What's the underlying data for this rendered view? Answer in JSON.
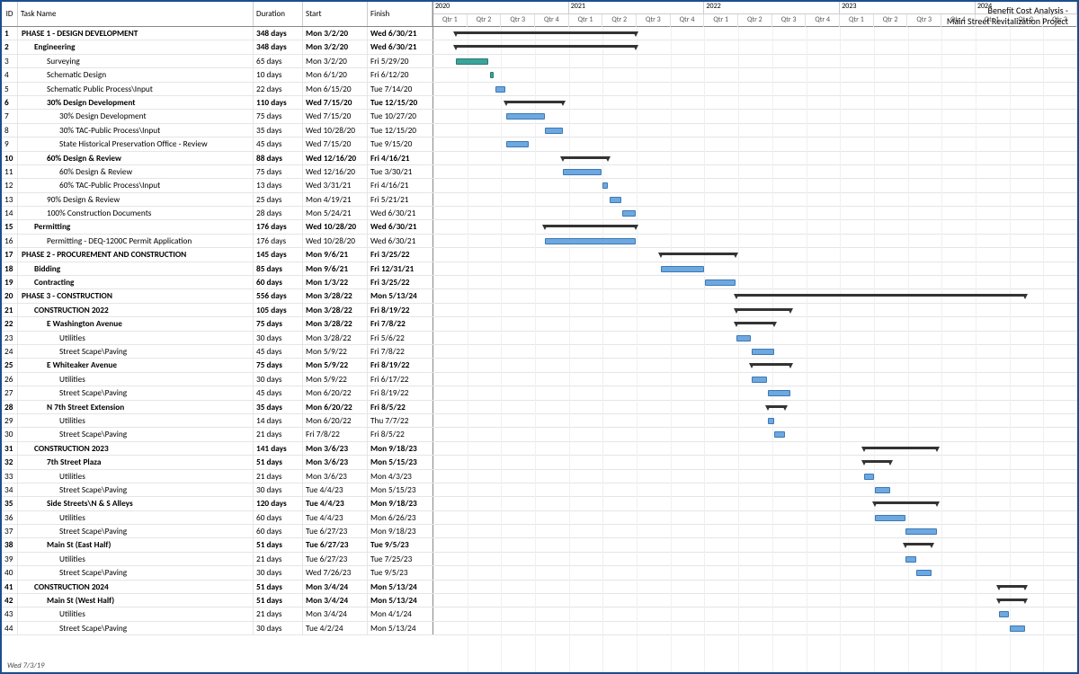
{
  "title_line1": "Benefit Cost Analysis -",
  "title_line2": "Main Street Revitalization Project",
  "footer": "Wed 7/3/19",
  "columns": {
    "id": "ID",
    "name": "Task Name",
    "dur": "Duration",
    "start": "Start",
    "finish": "Finish"
  },
  "timeline": {
    "start": "2020-01-01",
    "end": "2024-10-01",
    "years": [
      {
        "label": "2020",
        "qtrs": 4
      },
      {
        "label": "2021",
        "qtrs": 4
      },
      {
        "label": "2022",
        "qtrs": 4
      },
      {
        "label": "2023",
        "qtrs": 4
      },
      {
        "label": "2024",
        "qtrs": 3
      }
    ],
    "qtr_labels": [
      "Qtr 1",
      "Qtr 2",
      "Qtr 3",
      "Qtr 4"
    ]
  },
  "colors": {
    "border": "#1a4f8f",
    "task": "#6ea8e0",
    "task_border": "#3c78b4",
    "progress": "#3aa49b",
    "summary": "#333333",
    "grid": "#f0f0f0"
  },
  "tasks": [
    {
      "id": 1,
      "name": "PHASE 1 - DESIGN DEVELOPMENT",
      "dur": "348 days",
      "start": "Mon 3/2/20",
      "fin": "Wed 6/30/21",
      "indent": 0,
      "bold": true,
      "type": "summary",
      "s": "2020-03-02",
      "e": "2021-06-30"
    },
    {
      "id": 2,
      "name": "Engineering",
      "dur": "348 days",
      "start": "Mon 3/2/20",
      "fin": "Wed 6/30/21",
      "indent": 1,
      "bold": true,
      "type": "summary",
      "s": "2020-03-02",
      "e": "2021-06-30"
    },
    {
      "id": 3,
      "name": "Surveying",
      "dur": "65 days",
      "start": "Mon 3/2/20",
      "fin": "Fri 5/29/20",
      "indent": 2,
      "type": "prog",
      "s": "2020-03-02",
      "e": "2020-05-29"
    },
    {
      "id": 4,
      "name": "Schematic Design",
      "dur": "10 days",
      "start": "Mon 6/1/20",
      "fin": "Fri 6/12/20",
      "indent": 2,
      "type": "prog",
      "s": "2020-06-01",
      "e": "2020-06-12"
    },
    {
      "id": 5,
      "name": "Schematic Public Process\\Input",
      "dur": "22 days",
      "start": "Mon 6/15/20",
      "fin": "Tue 7/14/20",
      "indent": 2,
      "type": "task",
      "s": "2020-06-15",
      "e": "2020-07-14"
    },
    {
      "id": 6,
      "name": "30% Design Development",
      "dur": "110 days",
      "start": "Wed 7/15/20",
      "fin": "Tue 12/15/20",
      "indent": 2,
      "bold": true,
      "type": "summary",
      "s": "2020-07-15",
      "e": "2020-12-15"
    },
    {
      "id": 7,
      "name": "30% Design Development",
      "dur": "75 days",
      "start": "Wed 7/15/20",
      "fin": "Tue 10/27/20",
      "indent": 3,
      "type": "task",
      "s": "2020-07-15",
      "e": "2020-10-27"
    },
    {
      "id": 8,
      "name": "30% TAC-Public Process\\Input",
      "dur": "35 days",
      "start": "Wed 10/28/20",
      "fin": "Tue 12/15/20",
      "indent": 3,
      "type": "task",
      "s": "2020-10-28",
      "e": "2020-12-15"
    },
    {
      "id": 9,
      "name": "State Historical Preservation Office - Review",
      "dur": "45 days",
      "start": "Wed 7/15/20",
      "fin": "Tue 9/15/20",
      "indent": 3,
      "type": "task",
      "s": "2020-07-15",
      "e": "2020-09-15"
    },
    {
      "id": 10,
      "name": "60% Design & Review",
      "dur": "88 days",
      "start": "Wed 12/16/20",
      "fin": "Fri 4/16/21",
      "indent": 2,
      "bold": true,
      "type": "summary",
      "s": "2020-12-16",
      "e": "2021-04-16"
    },
    {
      "id": 11,
      "name": "60% Design & Review",
      "dur": "75 days",
      "start": "Wed 12/16/20",
      "fin": "Tue 3/30/21",
      "indent": 3,
      "type": "task",
      "s": "2020-12-16",
      "e": "2021-03-30"
    },
    {
      "id": 12,
      "name": "60% TAC-Public Process\\Input",
      "dur": "13 days",
      "start": "Wed 3/31/21",
      "fin": "Fri 4/16/21",
      "indent": 3,
      "type": "task",
      "s": "2021-03-31",
      "e": "2021-04-16"
    },
    {
      "id": 13,
      "name": "90% Design & Review",
      "dur": "25 days",
      "start": "Mon 4/19/21",
      "fin": "Fri 5/21/21",
      "indent": 2,
      "type": "task",
      "s": "2021-04-19",
      "e": "2021-05-21"
    },
    {
      "id": 14,
      "name": "100% Construction Documents",
      "dur": "28 days",
      "start": "Mon 5/24/21",
      "fin": "Wed 6/30/21",
      "indent": 2,
      "type": "task",
      "s": "2021-05-24",
      "e": "2021-06-30"
    },
    {
      "id": 15,
      "name": "Permitting",
      "dur": "176 days",
      "start": "Wed 10/28/20",
      "fin": "Wed 6/30/21",
      "indent": 1,
      "bold": true,
      "type": "summary",
      "s": "2020-10-28",
      "e": "2021-06-30"
    },
    {
      "id": 16,
      "name": "Permitting - DEQ-1200C Permit Application",
      "dur": "176 days",
      "start": "Wed 10/28/20",
      "fin": "Wed 6/30/21",
      "indent": 2,
      "type": "task",
      "s": "2020-10-28",
      "e": "2021-06-30"
    },
    {
      "id": 17,
      "name": "PHASE 2 - PROCUREMENT AND CONSTRUCTION",
      "dur": "145 days",
      "start": "Mon 9/6/21",
      "fin": "Fri 3/25/22",
      "indent": 0,
      "bold": true,
      "type": "summary",
      "s": "2021-09-06",
      "e": "2022-03-25"
    },
    {
      "id": 18,
      "name": "Bidding",
      "dur": "85 days",
      "start": "Mon 9/6/21",
      "fin": "Fri 12/31/21",
      "indent": 1,
      "bold": true,
      "type": "task",
      "s": "2021-09-06",
      "e": "2021-12-31"
    },
    {
      "id": 19,
      "name": "Contracting",
      "dur": "60 days",
      "start": "Mon 1/3/22",
      "fin": "Fri 3/25/22",
      "indent": 1,
      "bold": true,
      "type": "task",
      "s": "2022-01-03",
      "e": "2022-03-25"
    },
    {
      "id": 20,
      "name": "PHASE 3 - CONSTRUCTION",
      "dur": "556 days",
      "start": "Mon 3/28/22",
      "fin": "Mon 5/13/24",
      "indent": 0,
      "bold": true,
      "type": "summary",
      "s": "2022-03-28",
      "e": "2024-05-13"
    },
    {
      "id": 21,
      "name": "CONSTRUCTION 2022",
      "dur": "105 days",
      "start": "Mon 3/28/22",
      "fin": "Fri 8/19/22",
      "indent": 1,
      "bold": true,
      "type": "summary",
      "s": "2022-03-28",
      "e": "2022-08-19"
    },
    {
      "id": 22,
      "name": "E Washington Avenue",
      "dur": "75 days",
      "start": "Mon 3/28/22",
      "fin": "Fri 7/8/22",
      "indent": 2,
      "bold": true,
      "type": "summary",
      "s": "2022-03-28",
      "e": "2022-07-08"
    },
    {
      "id": 23,
      "name": "Utilities",
      "dur": "30 days",
      "start": "Mon 3/28/22",
      "fin": "Fri 5/6/22",
      "indent": 3,
      "type": "task",
      "s": "2022-03-28",
      "e": "2022-05-06"
    },
    {
      "id": 24,
      "name": "Street Scape\\Paving",
      "dur": "45 days",
      "start": "Mon 5/9/22",
      "fin": "Fri 7/8/22",
      "indent": 3,
      "type": "task",
      "s": "2022-05-09",
      "e": "2022-07-08"
    },
    {
      "id": 25,
      "name": "E Whiteaker Avenue",
      "dur": "75 days",
      "start": "Mon 5/9/22",
      "fin": "Fri 8/19/22",
      "indent": 2,
      "bold": true,
      "type": "summary",
      "s": "2022-05-09",
      "e": "2022-08-19"
    },
    {
      "id": 26,
      "name": "Utilities",
      "dur": "30 days",
      "start": "Mon 5/9/22",
      "fin": "Fri 6/17/22",
      "indent": 3,
      "type": "task",
      "s": "2022-05-09",
      "e": "2022-06-17"
    },
    {
      "id": 27,
      "name": "Street Scape\\Paving",
      "dur": "45 days",
      "start": "Mon 6/20/22",
      "fin": "Fri 8/19/22",
      "indent": 3,
      "type": "task",
      "s": "2022-06-20",
      "e": "2022-08-19"
    },
    {
      "id": 28,
      "name": "N 7th Street Extension",
      "dur": "35 days",
      "start": "Mon 6/20/22",
      "fin": "Fri 8/5/22",
      "indent": 2,
      "bold": true,
      "type": "summary",
      "s": "2022-06-20",
      "e": "2022-08-05"
    },
    {
      "id": 29,
      "name": "Utilities",
      "dur": "14 days",
      "start": "Mon 6/20/22",
      "fin": "Thu 7/7/22",
      "indent": 3,
      "type": "task",
      "s": "2022-06-20",
      "e": "2022-07-07"
    },
    {
      "id": 30,
      "name": "Street Scape\\Paving",
      "dur": "21 days",
      "start": "Fri 7/8/22",
      "fin": "Fri 8/5/22",
      "indent": 3,
      "type": "task",
      "s": "2022-07-08",
      "e": "2022-08-05"
    },
    {
      "id": 31,
      "name": "CONSTRUCTION 2023",
      "dur": "141 days",
      "start": "Mon 3/6/23",
      "fin": "Mon 9/18/23",
      "indent": 1,
      "bold": true,
      "type": "summary",
      "s": "2023-03-06",
      "e": "2023-09-18"
    },
    {
      "id": 32,
      "name": "7th Street Plaza",
      "dur": "51 days",
      "start": "Mon 3/6/23",
      "fin": "Mon 5/15/23",
      "indent": 2,
      "bold": true,
      "type": "summary",
      "s": "2023-03-06",
      "e": "2023-05-15"
    },
    {
      "id": 33,
      "name": "Utilities",
      "dur": "21 days",
      "start": "Mon 3/6/23",
      "fin": "Mon 4/3/23",
      "indent": 3,
      "type": "task",
      "s": "2023-03-06",
      "e": "2023-04-03"
    },
    {
      "id": 34,
      "name": "Street Scape\\Paving",
      "dur": "30 days",
      "start": "Tue 4/4/23",
      "fin": "Mon 5/15/23",
      "indent": 3,
      "type": "task",
      "s": "2023-04-04",
      "e": "2023-05-15"
    },
    {
      "id": 35,
      "name": "Side Streets\\N & S Alleys",
      "dur": "120 days",
      "start": "Tue 4/4/23",
      "fin": "Mon 9/18/23",
      "indent": 2,
      "bold": true,
      "type": "summary",
      "s": "2023-04-04",
      "e": "2023-09-18"
    },
    {
      "id": 36,
      "name": "Utilities",
      "dur": "60 days",
      "start": "Tue 4/4/23",
      "fin": "Mon 6/26/23",
      "indent": 3,
      "type": "task",
      "s": "2023-04-04",
      "e": "2023-06-26"
    },
    {
      "id": 37,
      "name": "Street Scape\\Paving",
      "dur": "60 days",
      "start": "Tue 6/27/23",
      "fin": "Mon 9/18/23",
      "indent": 3,
      "type": "task",
      "s": "2023-06-27",
      "e": "2023-09-18"
    },
    {
      "id": 38,
      "name": "Main St (East Half)",
      "dur": "51 days",
      "start": "Tue 6/27/23",
      "fin": "Tue 9/5/23",
      "indent": 2,
      "bold": true,
      "type": "summary",
      "s": "2023-06-27",
      "e": "2023-09-05"
    },
    {
      "id": 39,
      "name": "Utilities",
      "dur": "21 days",
      "start": "Tue 6/27/23",
      "fin": "Tue 7/25/23",
      "indent": 3,
      "type": "task",
      "s": "2023-06-27",
      "e": "2023-07-25"
    },
    {
      "id": 40,
      "name": "Street Scape\\Paving",
      "dur": "30 days",
      "start": "Wed 7/26/23",
      "fin": "Tue 9/5/23",
      "indent": 3,
      "type": "task",
      "s": "2023-07-26",
      "e": "2023-09-05"
    },
    {
      "id": 41,
      "name": "CONSTRUCTION 2024",
      "dur": "51 days",
      "start": "Mon 3/4/24",
      "fin": "Mon 5/13/24",
      "indent": 1,
      "bold": true,
      "type": "summary",
      "s": "2024-03-04",
      "e": "2024-05-13"
    },
    {
      "id": 42,
      "name": "Main St (West Half)",
      "dur": "51 days",
      "start": "Mon 3/4/24",
      "fin": "Mon 5/13/24",
      "indent": 2,
      "bold": true,
      "type": "summary",
      "s": "2024-03-04",
      "e": "2024-05-13"
    },
    {
      "id": 43,
      "name": "Utilities",
      "dur": "21 days",
      "start": "Mon 3/4/24",
      "fin": "Mon 4/1/24",
      "indent": 3,
      "type": "task",
      "s": "2024-03-04",
      "e": "2024-04-01"
    },
    {
      "id": 44,
      "name": "Street Scape\\Paving",
      "dur": "30 days",
      "start": "Tue 4/2/24",
      "fin": "Mon 5/13/24",
      "indent": 3,
      "type": "task",
      "s": "2024-04-02",
      "e": "2024-05-13"
    }
  ]
}
